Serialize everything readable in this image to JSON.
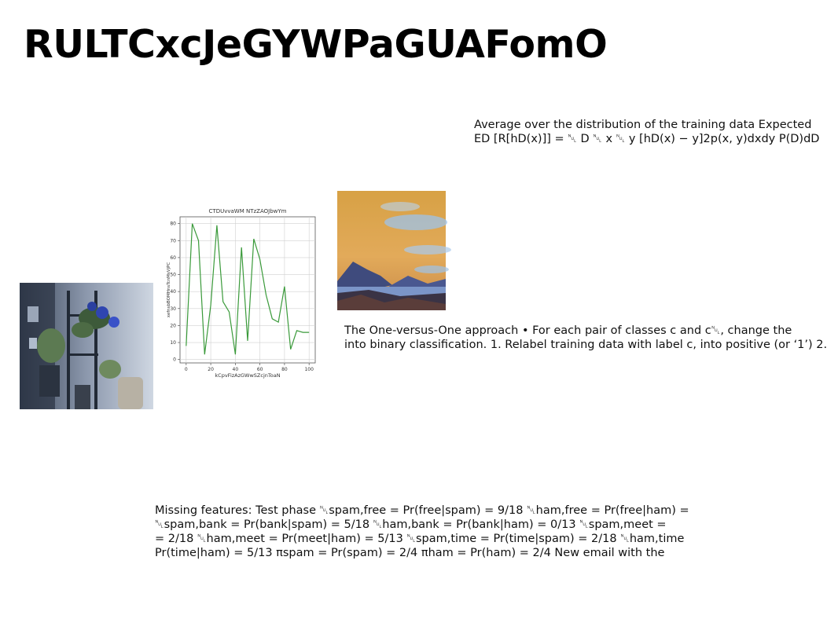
{
  "slide": {
    "title": "RULTCxcJeGYWPaGUAFomO"
  },
  "text_blocks": {
    "top": [
      "Average over the distribution of the training data Expected",
      "ED [R[hD(x)]] = ␀ D ␀ x ␀ y [hD(x) − y]2p(x, y)dxdy P(D)dD"
    ],
    "middle": [
      "The One-versus-One approach • For each pair of classes c and c␀, change the",
      "into binary classification. 1. Relabel training data with label c, into positive (or ‘1’) 2."
    ],
    "bottom": [
      "Missing features: Test phase ␀spam,free = Pr(free|spam) = 9/18 ␀ham,free = Pr(free|ham) =",
      "␀spam,bank = Pr(bank|spam) = 5/18 ␀ham,bank = Pr(bank|ham) = 0/13 ␀spam,meet =",
      "= 2/18 ␀ham,meet = Pr(meet|ham) = 5/13 ␀spam,time = Pr(time|spam) = 2/18 ␀ham,time",
      "Pr(time|ham) = 5/13 πspam = Pr(spam) = 2/4 πham = Pr(ham) = 2/4 New email with the"
    ]
  },
  "images": {
    "plants_photo": "indoor-plants-shelf",
    "landscape_photo": "lake-mountains-sunset"
  },
  "chart_data": {
    "type": "line",
    "title": "CTDUvvaWM NTzZAOJbwYm",
    "xlabel": "kCpvFizAzGWwSZcjnToaN",
    "ylabel": "xefnsbBOMHnsTcnMsVjPC",
    "x": [
      0,
      5,
      10,
      15,
      20,
      25,
      30,
      35,
      40,
      45,
      50,
      55,
      60,
      65,
      70,
      75,
      80,
      85,
      90,
      95,
      100
    ],
    "series": [
      {
        "values": [
          8,
          80,
          70,
          3,
          32,
          79,
          34,
          28,
          3,
          66,
          11,
          71,
          59,
          38,
          24,
          22,
          43,
          6,
          17,
          16,
          16
        ]
      }
    ],
    "xlim": [
      -5,
      105
    ],
    "ylim": [
      -2,
      84
    ],
    "xticks": [
      0,
      20,
      40,
      60,
      80,
      100
    ],
    "yticks": [
      0,
      10,
      20,
      30,
      40,
      50,
      60,
      70,
      80
    ],
    "grid": true,
    "line_color": "#3a9a3a"
  }
}
